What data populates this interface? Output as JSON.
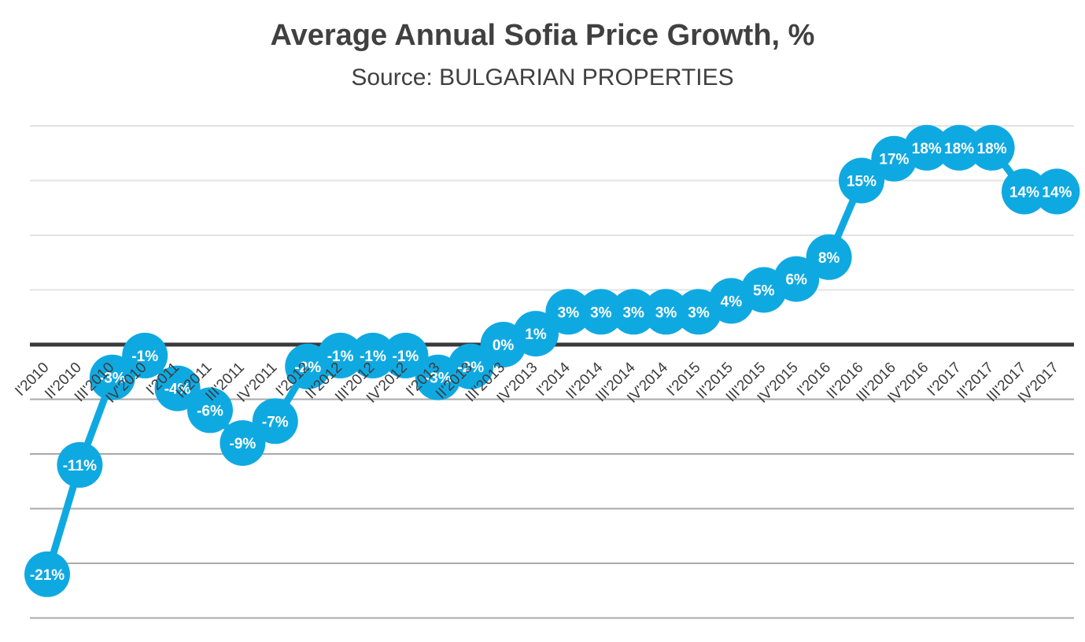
{
  "header": {
    "title": "Average Annual Sofia Price Growth, %",
    "subtitle": "Source: BULGARIAN PROPERTIES"
  },
  "chart_data": {
    "type": "line",
    "title": "Average Annual Sofia Price Growth, %",
    "subtitle": "Source: BULGARIAN PROPERTIES",
    "xlabel": "",
    "ylabel": "",
    "categories": [
      "I'2010",
      "II'2010",
      "III'2010",
      "IV'2010",
      "I'2011",
      "II'2011",
      "III'2011",
      "IV'2011",
      "I'2012",
      "II'2012",
      "III'2012",
      "IV'2012",
      "I'2013",
      "II'2013",
      "III'2013",
      "IV'2013",
      "I'2014",
      "II'2014",
      "III'2014",
      "IV'2014",
      "I'2015",
      "II'2015",
      "III'2015",
      "IV'2015",
      "I'2016",
      "II'2016",
      "III'2016",
      "IV'2016",
      "I'2017",
      "II'2017",
      "III'2017",
      "IV'2017"
    ],
    "values": [
      -21,
      -11,
      -3,
      -1,
      -4,
      -6,
      -9,
      -7,
      -2,
      -1,
      -1,
      -1,
      -3,
      -2,
      0,
      1,
      3,
      3,
      3,
      3,
      3,
      4,
      5,
      6,
      8,
      15,
      17,
      18,
      18,
      18,
      14,
      14
    ],
    "point_labels": [
      "-21%",
      "-11%",
      "-3%",
      "-1%",
      "-4%",
      "-6%",
      "-9%",
      "-7%",
      "-2%",
      "-1%",
      "-1%",
      "-1%",
      "-3%",
      "-2%",
      "0%",
      "1%",
      "3%",
      "3%",
      "3%",
      "3%",
      "3%",
      "4%",
      "5%",
      "6%",
      "8%",
      "15%",
      "17%",
      "18%",
      "18%",
      "18%",
      "14%",
      "14%"
    ],
    "ylim": [
      -25,
      20
    ],
    "gridline_step": 5,
    "grid": true,
    "legend": false,
    "zero_axis_emphasized": true,
    "colors": {
      "series": "#0FA9E2",
      "marker": "#0FA9E2",
      "point_label_text": "#FFFFFF",
      "zero_axis": "#3A3A3A",
      "gridline_above_zero": "#E3E3E3",
      "gridline_below_zero": "#A9A9A9",
      "category_label_text": "#3D3D3D",
      "title_text": "#404040"
    }
  }
}
